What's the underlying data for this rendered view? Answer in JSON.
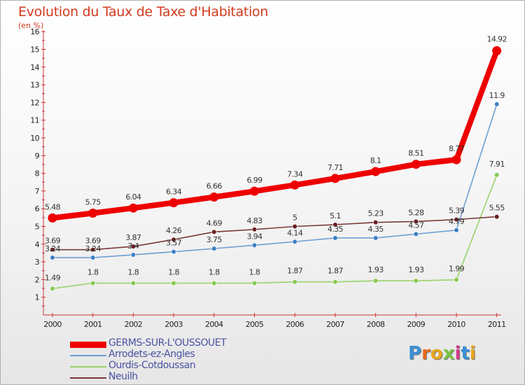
{
  "title": "Evolution du Taux de Taxe d'Habitation",
  "subtitle": "(en %)",
  "logo": "Proxiti",
  "chart_data": {
    "type": "line",
    "title": "Evolution du Taux de Taxe d'Habitation",
    "ylabel": "(en %)",
    "xlabel": "",
    "x": [
      "2000",
      "2001",
      "2002",
      "2003",
      "2004",
      "2005",
      "2006",
      "2007",
      "2008",
      "2009",
      "2010",
      "2011"
    ],
    "ylim": [
      0,
      16
    ],
    "yticks": [
      "1",
      "2",
      "3",
      "4",
      "5",
      "6",
      "7",
      "8",
      "9",
      "10",
      "11",
      "12",
      "13",
      "14",
      "15",
      "16"
    ],
    "grid": false,
    "legend_position": "bottom-left",
    "series": [
      {
        "name": "GERMS-SUR-L'OUSSOUET",
        "color": "#ee0000",
        "values": [
          5.48,
          5.75,
          6.04,
          6.34,
          6.66,
          6.99,
          7.34,
          7.71,
          8.1,
          8.51,
          8.77,
          14.92
        ],
        "labels": [
          "5.48",
          "5.75",
          "6.04",
          "6.34",
          "6.66",
          "6.99",
          "7.34",
          "7.71",
          "8.1",
          "8.51",
          "8.77",
          "14.92"
        ]
      },
      {
        "name": "Arrodets-ez-Angles",
        "color": "#6c9fd2",
        "values": [
          3.24,
          3.24,
          3.4,
          3.57,
          3.75,
          3.94,
          4.14,
          4.35,
          4.35,
          4.57,
          4.79,
          11.9
        ],
        "labels": [
          "3.24",
          "3.24",
          "3.4",
          "3.57",
          "3.75",
          "3.94",
          "4.14",
          "4.35",
          "4.35",
          "4.57",
          "4.79",
          "11.9"
        ]
      },
      {
        "name": "Ourdis-Cotdoussan",
        "color": "#99d36a",
        "values": [
          1.49,
          1.8,
          1.8,
          1.8,
          1.8,
          1.8,
          1.87,
          1.87,
          1.93,
          1.93,
          1.99,
          7.91
        ],
        "labels": [
          "1.49",
          "1.8",
          "1.8",
          "1.8",
          "1.8",
          "1.8",
          "1.87",
          "1.87",
          "1.93",
          "1.93",
          "1.99",
          "7.91"
        ]
      },
      {
        "name": "Neuilh",
        "color": "#7a3a3a",
        "values": [
          3.69,
          3.69,
          3.87,
          4.26,
          4.69,
          4.83,
          5,
          5.1,
          5.23,
          5.28,
          5.39,
          5.55
        ],
        "labels": [
          "3.69",
          "3.69",
          "3.87",
          "4.26",
          "4.69",
          "4.83",
          "5",
          "5.1",
          "5.23",
          "5.28",
          "5.39",
          "5.55"
        ]
      }
    ]
  }
}
